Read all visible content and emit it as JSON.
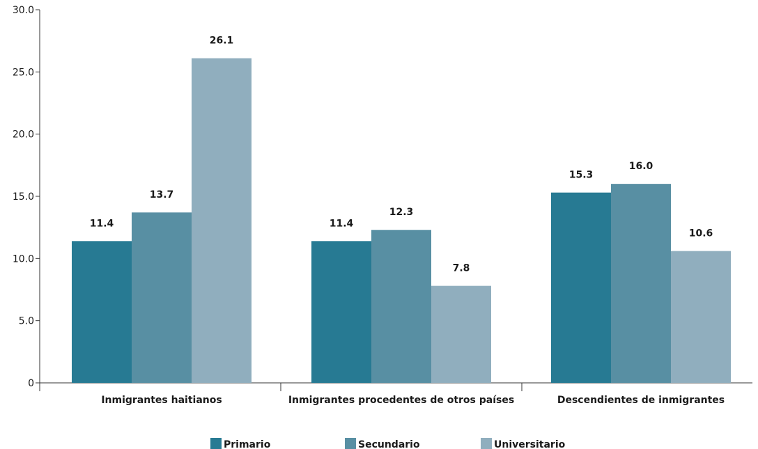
{
  "chart_data": {
    "type": "bar",
    "title": "",
    "xlabel": "",
    "ylabel": "",
    "categories": [
      "Inmigrantes haitianos",
      "Inmigrantes procedentes de otros países",
      "Descendientes de inmigrantes"
    ],
    "series": [
      {
        "name": "Primario",
        "color": "#277a93",
        "values": [
          11.4,
          11.4,
          15.3
        ]
      },
      {
        "name": "Secundario",
        "color": "#588fa3",
        "values": [
          13.7,
          12.3,
          16.0
        ]
      },
      {
        "name": "Universitario",
        "color": "#90aebe",
        "values": [
          26.1,
          7.8,
          10.6
        ]
      }
    ],
    "ylim": [
      0,
      30
    ],
    "yticks": [
      {
        "value": 0,
        "label": "0"
      },
      {
        "value": 5,
        "label": "5.0"
      },
      {
        "value": 10,
        "label": "10.0"
      },
      {
        "value": 15,
        "label": "15.0"
      },
      {
        "value": 20,
        "label": "20.0"
      },
      {
        "value": 25,
        "label": "25.0"
      },
      {
        "value": 30,
        "label": "30.0"
      }
    ],
    "data_labels": [
      [
        "11.4",
        "11.4",
        "15.3"
      ],
      [
        "13.7",
        "12.3",
        "16.0"
      ],
      [
        "26.1",
        "7.8",
        "10.6"
      ]
    ],
    "grid": false,
    "legend_position": "bottom"
  }
}
